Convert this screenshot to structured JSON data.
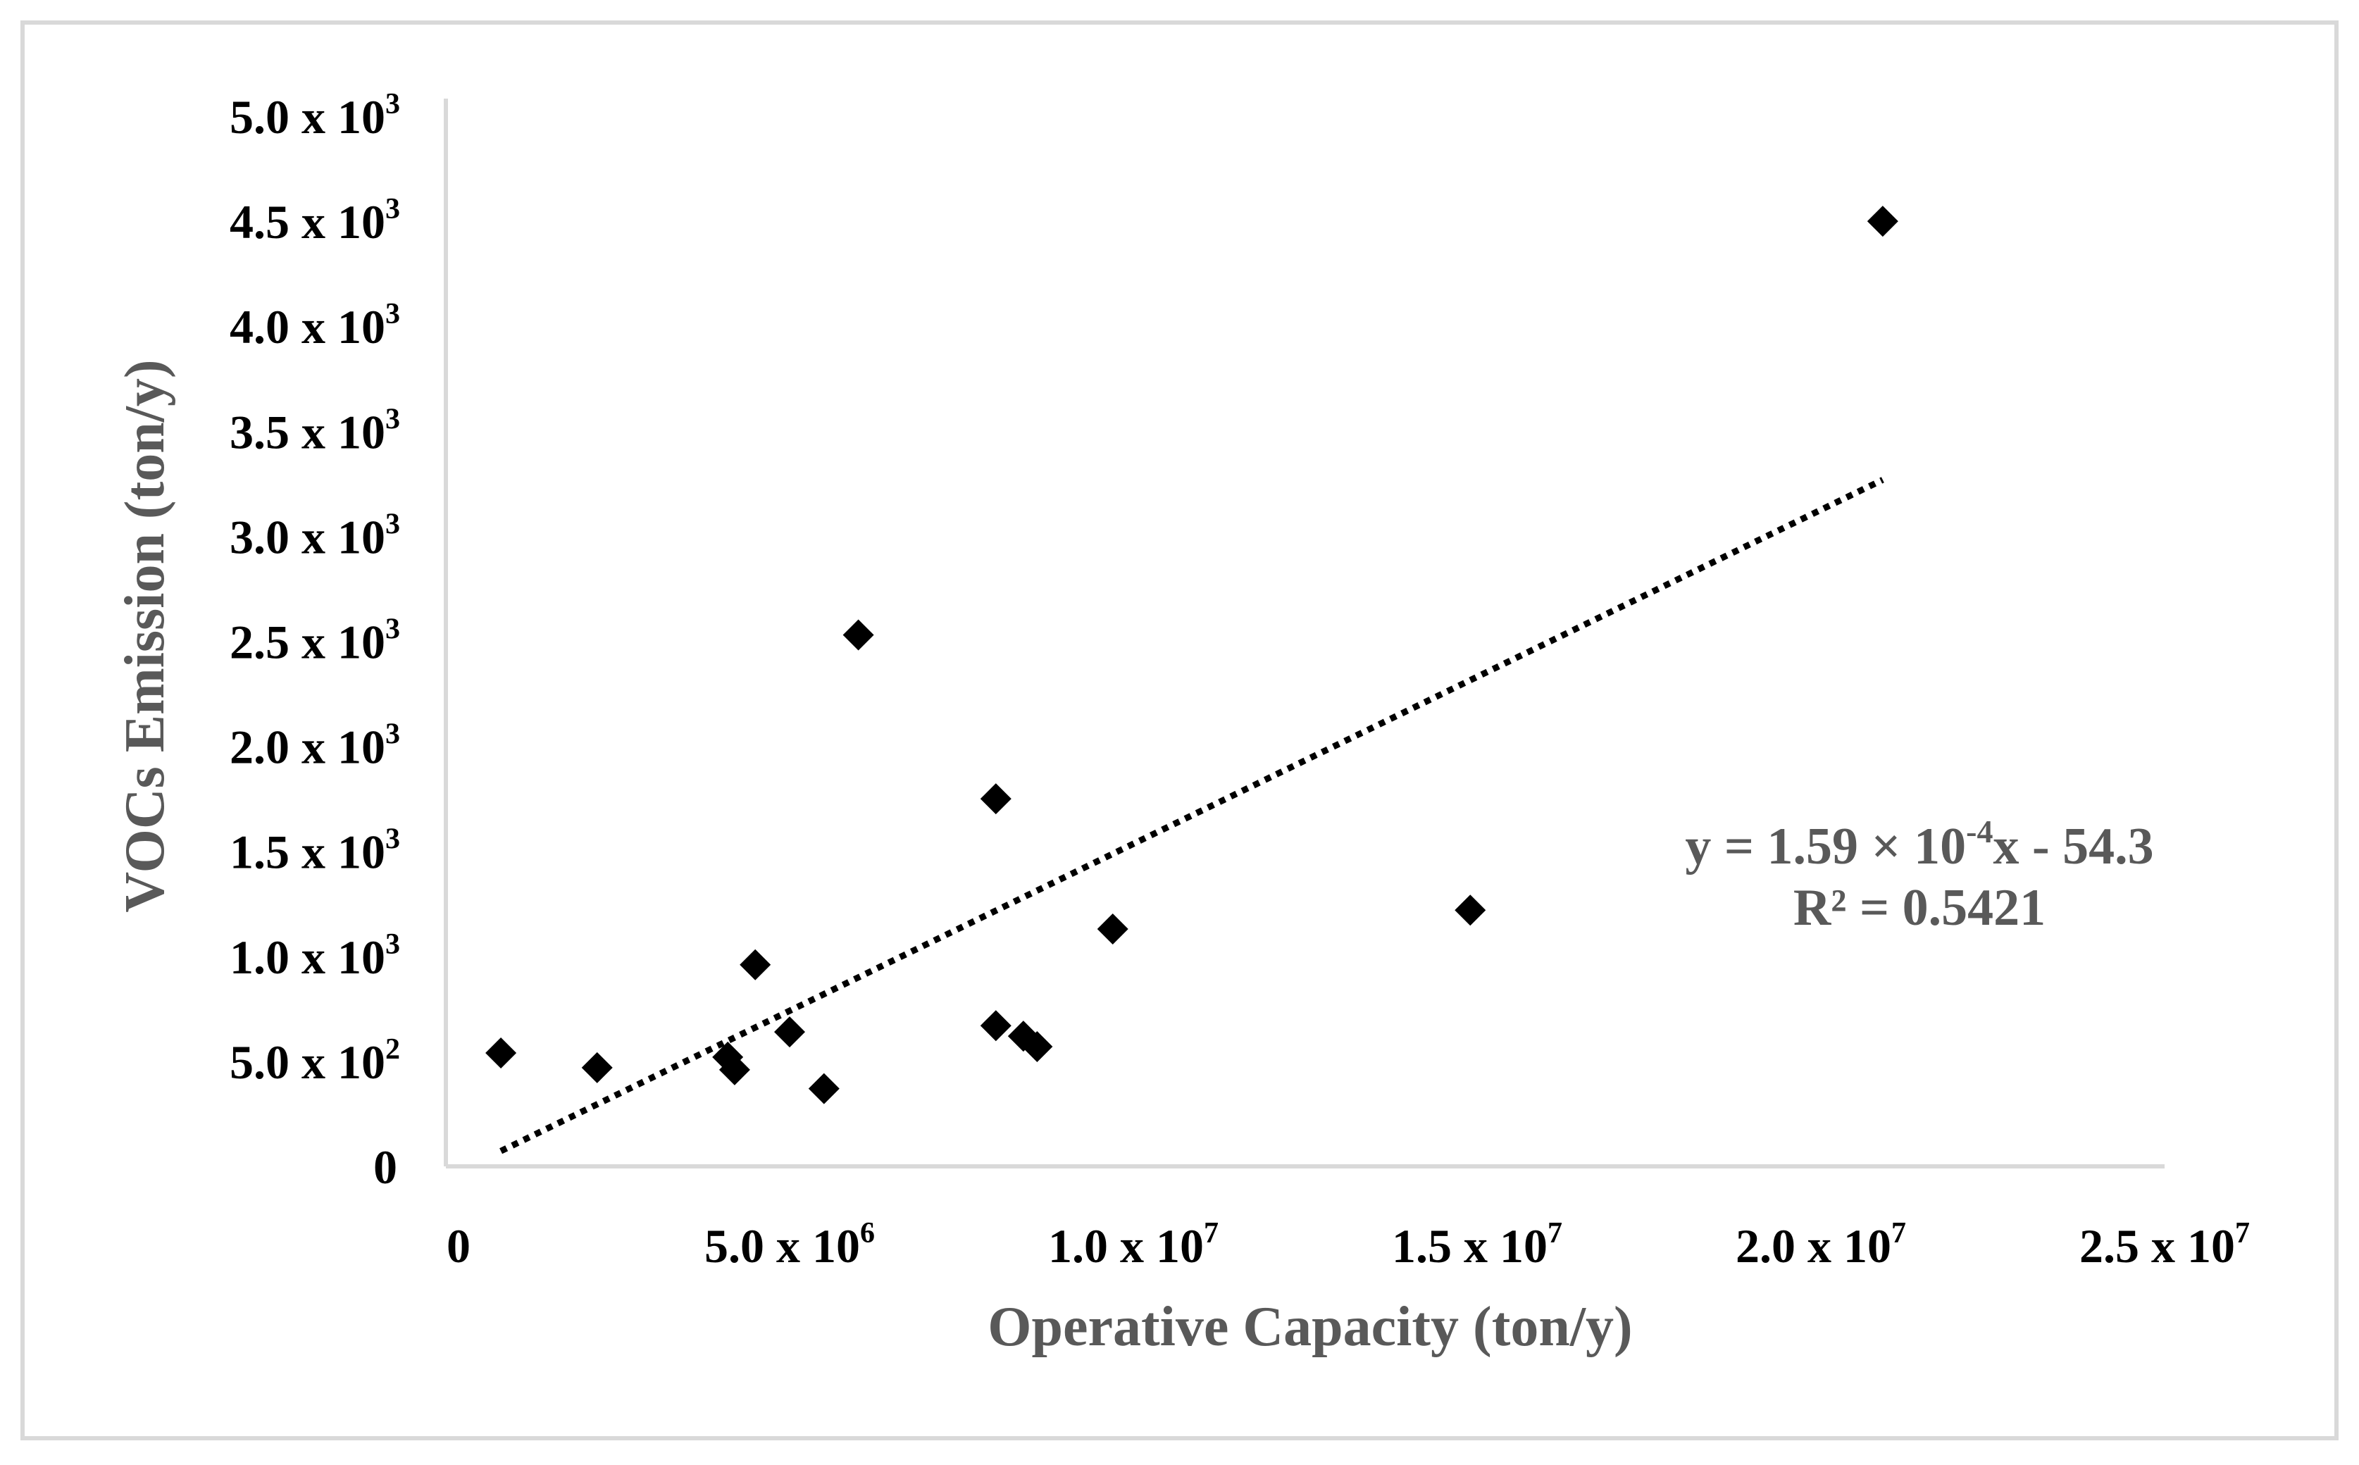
{
  "chart_data": {
    "type": "scatter",
    "title": "",
    "xlabel": "Operative Capacity (ton/y)",
    "ylabel": "VOCs Emission (ton/y)",
    "xlim": [
      0,
      25000000
    ],
    "ylim": [
      0,
      5000
    ],
    "x_ticks": [
      {
        "value": 0,
        "mantissa": "0",
        "exp": ""
      },
      {
        "value": 5000000,
        "mantissa": "5.0 x 10",
        "exp": "6"
      },
      {
        "value": 10000000,
        "mantissa": "1.0 x 10",
        "exp": "7"
      },
      {
        "value": 15000000,
        "mantissa": "1.5 x 10",
        "exp": "7"
      },
      {
        "value": 20000000,
        "mantissa": "2.0 x 10",
        "exp": "7"
      },
      {
        "value": 25000000,
        "mantissa": "2.5 x 10",
        "exp": "7"
      }
    ],
    "y_ticks": [
      {
        "value": 0,
        "mantissa": "0",
        "exp": ""
      },
      {
        "value": 500,
        "mantissa": "5.0 x 10",
        "exp": "2"
      },
      {
        "value": 1000,
        "mantissa": "1.0 x 10",
        "exp": "3"
      },
      {
        "value": 1500,
        "mantissa": "1.5 x 10",
        "exp": "3"
      },
      {
        "value": 2000,
        "mantissa": "2.0 x 10",
        "exp": "3"
      },
      {
        "value": 2500,
        "mantissa": "2.5 x 10",
        "exp": "3"
      },
      {
        "value": 3000,
        "mantissa": "3.0 x 10",
        "exp": "3"
      },
      {
        "value": 3500,
        "mantissa": "3.5 x 10",
        "exp": "3"
      },
      {
        "value": 4000,
        "mantissa": "4.0 x 10",
        "exp": "3"
      },
      {
        "value": 4500,
        "mantissa": "4.5 x 10",
        "exp": "3"
      },
      {
        "value": 5000,
        "mantissa": "5.0 x 10",
        "exp": "3"
      }
    ],
    "series": [
      {
        "name": "VOCs Emission",
        "marker": "diamond",
        "color": "#000000",
        "points": [
          {
            "x": 800000,
            "y": 540
          },
          {
            "x": 2200000,
            "y": 470
          },
          {
            "x": 4100000,
            "y": 520
          },
          {
            "x": 4200000,
            "y": 460
          },
          {
            "x": 4500000,
            "y": 960
          },
          {
            "x": 5000000,
            "y": 640
          },
          {
            "x": 5500000,
            "y": 370
          },
          {
            "x": 6000000,
            "y": 2530
          },
          {
            "x": 8000000,
            "y": 670
          },
          {
            "x": 8000000,
            "y": 1750
          },
          {
            "x": 8400000,
            "y": 620
          },
          {
            "x": 8600000,
            "y": 570
          },
          {
            "x": 9700000,
            "y": 1130
          },
          {
            "x": 14900000,
            "y": 1220
          },
          {
            "x": 20900000,
            "y": 4500
          }
        ]
      }
    ],
    "trendline": {
      "type": "linear",
      "slope": 0.000159,
      "intercept": -54.3,
      "x_range": [
        800000,
        20900000
      ],
      "style": "dotted",
      "color": "#000000"
    },
    "annotation": {
      "equation": {
        "pre": "y = 1.59 × 10",
        "exp": "-4",
        "post": "x - 54.3"
      },
      "r_squared": "R² = 0.5421"
    },
    "grid": false,
    "legend": "none"
  },
  "colors": {
    "axis": "#d9d9d9",
    "label": "#595959",
    "tick": "#000000",
    "frame": "#d9d9d9"
  }
}
